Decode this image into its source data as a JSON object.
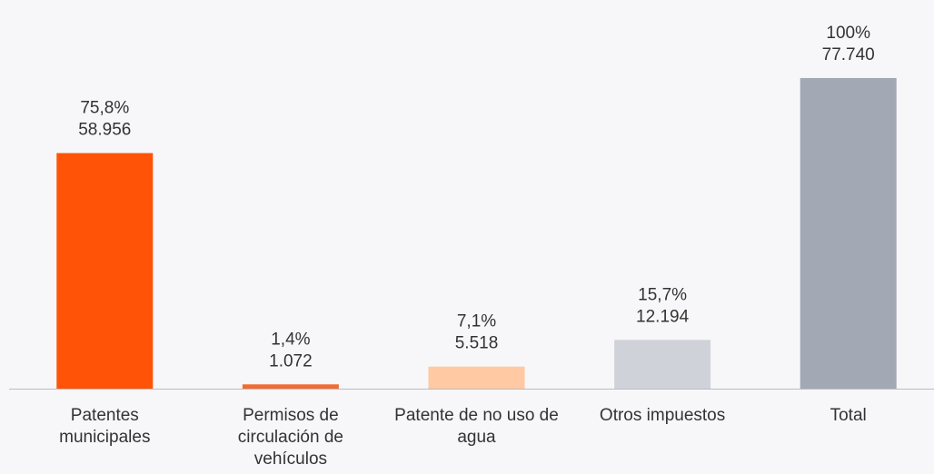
{
  "chart_data": {
    "type": "bar",
    "categories": [
      "Patentes municipales",
      "Permisos de circulación de vehículos",
      "Patente de no uso de agua",
      "Otros impuestos",
      "Total"
    ],
    "values": [
      58956,
      1072,
      5518,
      12194,
      77740
    ],
    "value_labels": [
      "58.956",
      "1.072",
      "5.518",
      "12.194",
      "77.740"
    ],
    "percent_labels": [
      "75,8%",
      "1,4%",
      "7,1%",
      "15,7%",
      "100%"
    ],
    "colors": [
      "#ff5308",
      "#f26b30",
      "#ffc9a3",
      "#cfd3d9",
      "#a3a9b4"
    ],
    "ylim": [
      0,
      80000
    ]
  }
}
